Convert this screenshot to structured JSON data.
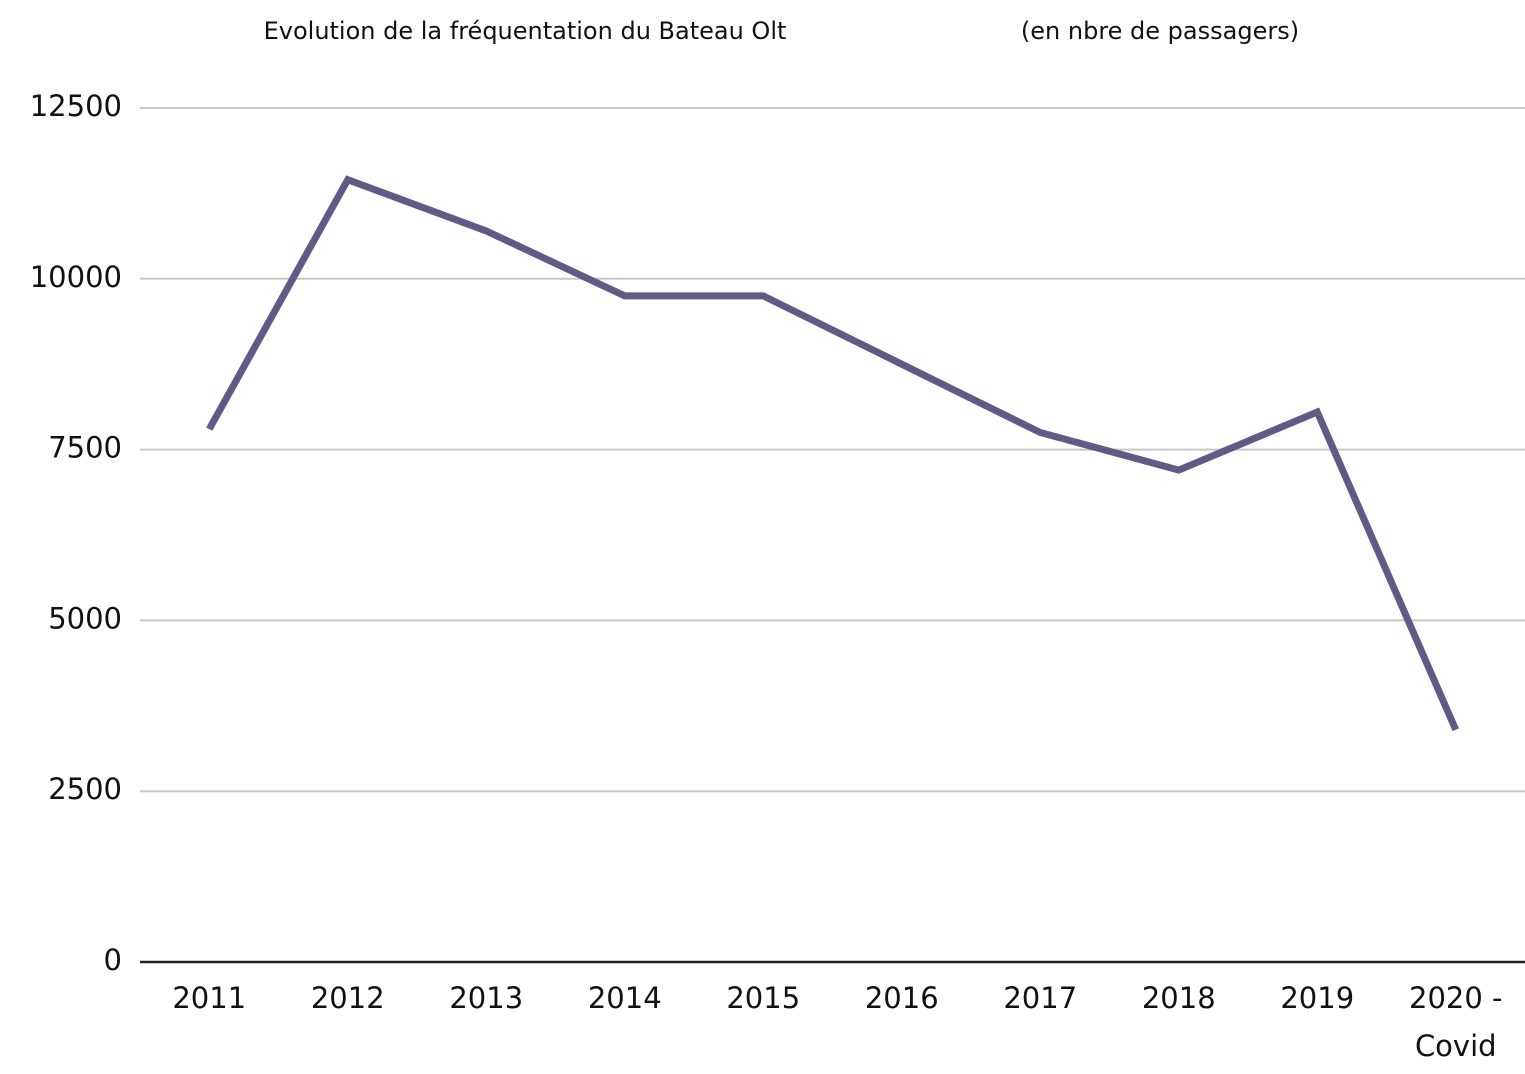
{
  "chart_data": {
    "type": "line",
    "title": "Evolution de la fréquentation du Bateau Olt",
    "subtitle": "(en nbre de passagers)",
    "categories": [
      "2011",
      "2012",
      "2013",
      "2014",
      "2015",
      "2016",
      "2017",
      "2018",
      "2019",
      "2020 - Covid"
    ],
    "series": [
      {
        "name": "Passagers",
        "color": "#5f5b86",
        "values": [
          7800,
          11450,
          10700,
          9750,
          9750,
          8750,
          7750,
          7200,
          8050,
          3400
        ]
      }
    ],
    "ylim": [
      0,
      12500
    ],
    "yticks": [
      0,
      2500,
      5000,
      7500,
      10000,
      12500
    ],
    "grid": true
  }
}
